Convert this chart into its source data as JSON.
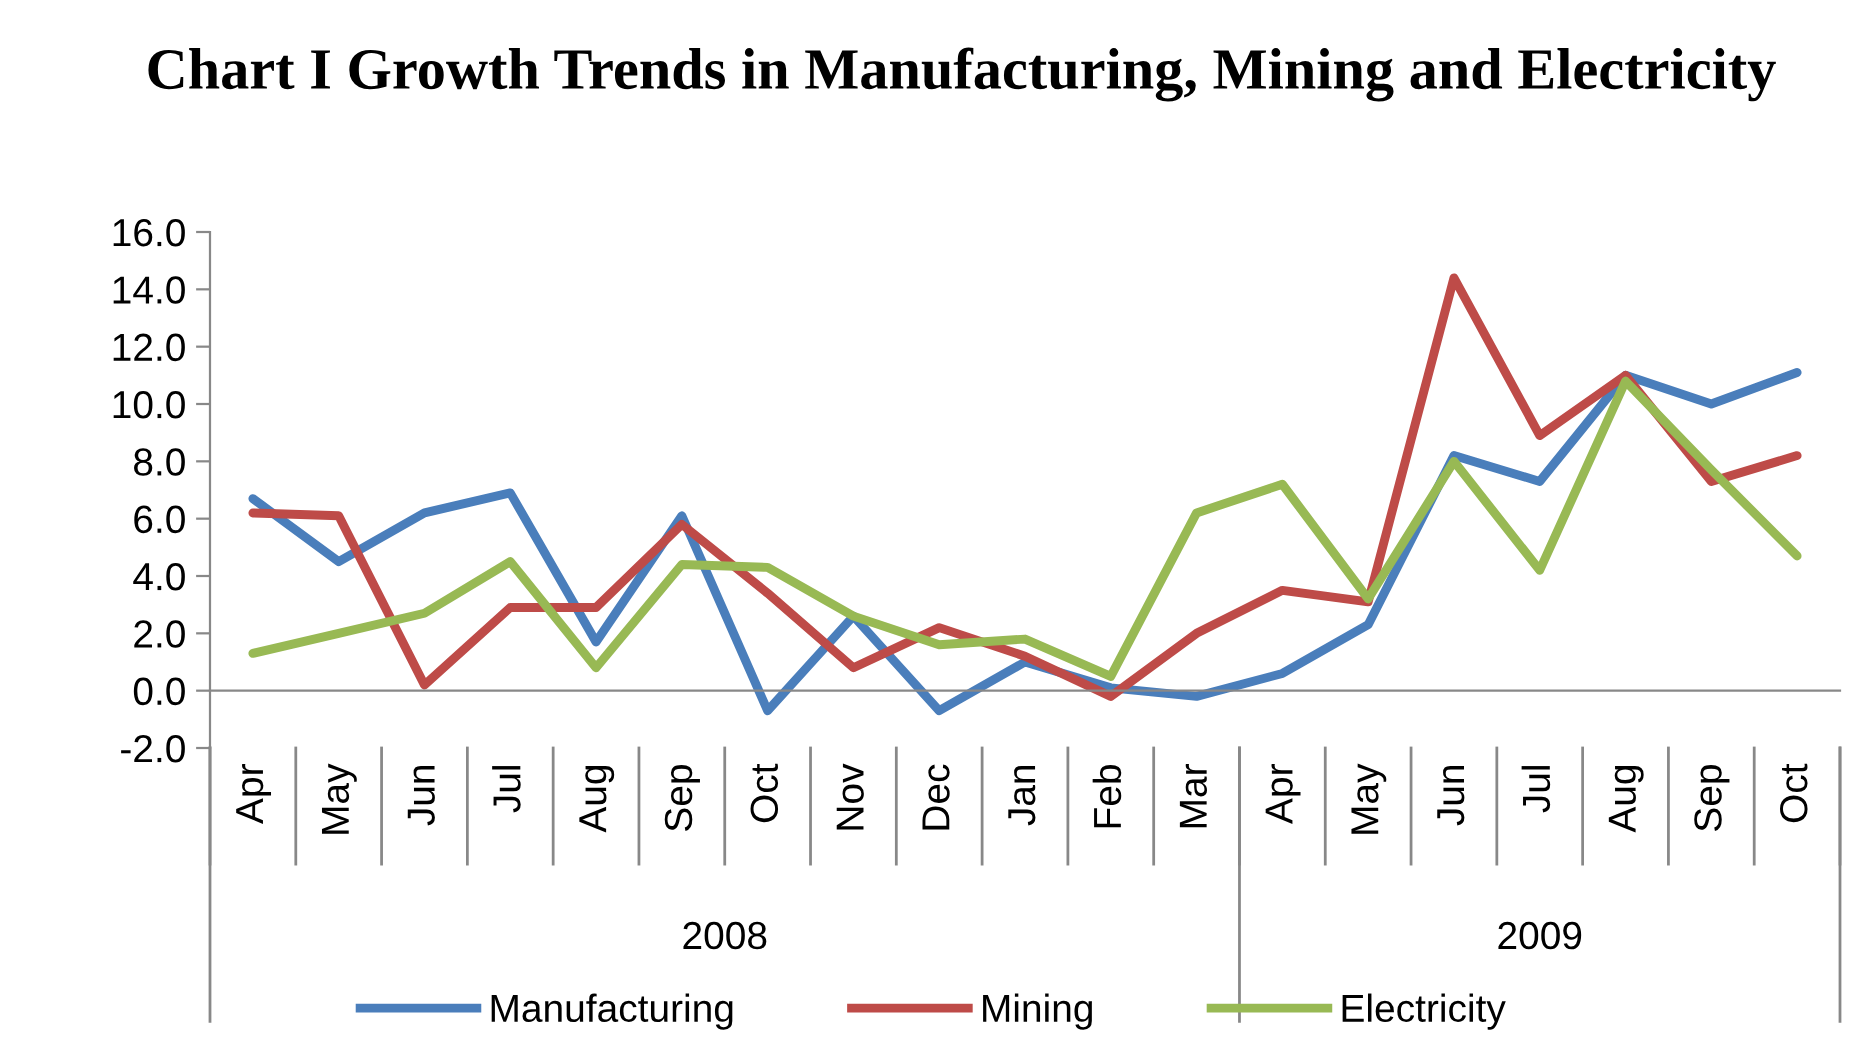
{
  "chart_data": {
    "type": "line",
    "title": "Chart I Growth Trends in Manufacturing, Mining and Electricity",
    "categories": [
      "Apr",
      "May",
      "Jun",
      "Jul",
      "Aug",
      "Sep",
      "Oct",
      "Nov",
      "Dec",
      "Jan",
      "Feb",
      "Mar",
      "Apr",
      "May",
      "Jun",
      "Jul",
      "Aug",
      "Sep",
      "Oct"
    ],
    "annotations": [
      "2008",
      "2009"
    ],
    "series": [
      {
        "name": "Manufacturing",
        "color": "#4a7ebb",
        "values": [
          6.7,
          4.5,
          6.2,
          6.9,
          1.7,
          6.1,
          -0.7,
          2.6,
          -0.7,
          1.0,
          0.1,
          -0.2,
          0.6,
          2.3,
          8.2,
          7.3,
          11.0,
          10.0,
          11.1
        ]
      },
      {
        "name": "Mining",
        "color": "#be4b48",
        "values": [
          6.2,
          6.1,
          0.2,
          2.9,
          2.9,
          5.8,
          3.4,
          0.8,
          2.2,
          1.2,
          -0.2,
          2.0,
          3.5,
          3.1,
          14.4,
          8.9,
          11.0,
          7.3,
          8.2
        ]
      },
      {
        "name": "Electricity",
        "color": "#98b954",
        "values": [
          1.3,
          2.0,
          2.7,
          4.5,
          0.8,
          4.4,
          4.3,
          2.6,
          1.6,
          1.8,
          0.5,
          6.2,
          7.2,
          3.2,
          8.0,
          4.2,
          10.8,
          7.7,
          4.7
        ]
      }
    ],
    "ylim": [
      -2,
      16
    ],
    "yticks": [
      {
        "value": -2,
        "label": "-2.0"
      },
      {
        "value": 0,
        "label": "0.0"
      },
      {
        "value": 2,
        "label": "2.0"
      },
      {
        "value": 4,
        "label": "4.0"
      },
      {
        "value": 6,
        "label": "6.0"
      },
      {
        "value": 8,
        "label": "8.0"
      },
      {
        "value": 10,
        "label": "10.0"
      },
      {
        "value": 12,
        "label": "12.0"
      },
      {
        "value": 14,
        "label": "14.0"
      },
      {
        "value": 16,
        "label": "16.0"
      }
    ],
    "grid": false,
    "legend": "bottom",
    "marker": "none",
    "line_style": "solid"
  }
}
